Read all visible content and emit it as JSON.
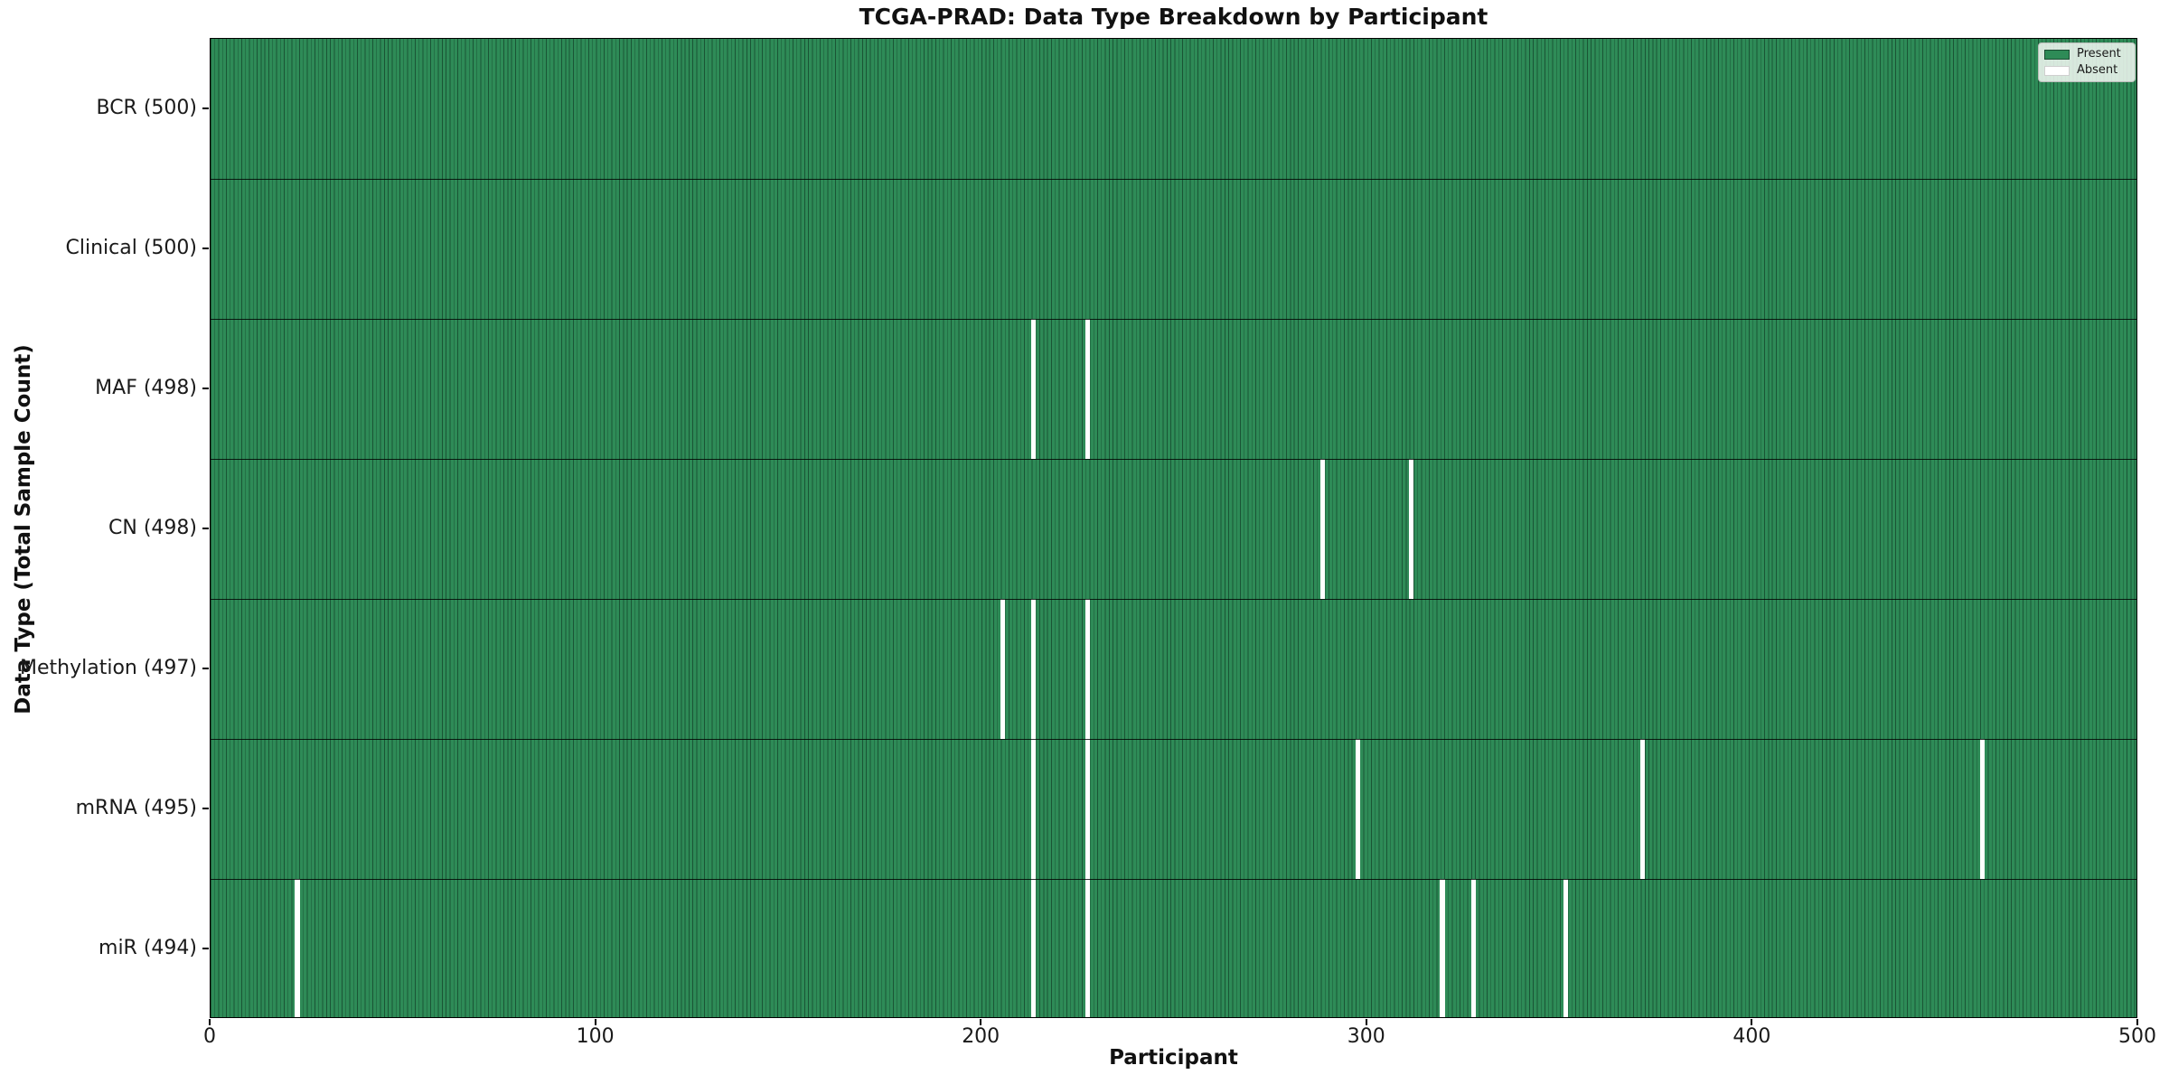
{
  "figure": {
    "title": "TCGA-PRAD: Data Type Breakdown by Participant",
    "xlabel": "Participant",
    "ylabel": "Data Type (Total Sample Count)"
  },
  "legend": {
    "items": [
      {
        "label": "Present",
        "color": "#2e8b57",
        "edge": "#1c4c33"
      },
      {
        "label": "Absent",
        "color": "#ffffff",
        "edge": "#cfcfcf"
      }
    ]
  },
  "chart_data": {
    "type": "heatmap",
    "title": "TCGA-PRAD: Data Type Breakdown by Participant",
    "xlabel": "Participant",
    "ylabel": "Data Type (Total Sample Count)",
    "x_axis": {
      "min": 0,
      "max": 500,
      "ticks": [
        0,
        100,
        200,
        300,
        400,
        500
      ]
    },
    "n_participants": 500,
    "colors": {
      "present": "#2e8b57",
      "absent": "#ffffff",
      "bar_edge": "rgba(10,40,25,0.55)",
      "row_separator": "rgba(0,0,0,0.8)"
    },
    "legend_position": "upper right",
    "grid": false,
    "rows": [
      {
        "label": "BCR (500)",
        "name": "BCR",
        "total": 500,
        "absent": []
      },
      {
        "label": "Clinical (500)",
        "name": "Clinical",
        "total": 500,
        "absent": []
      },
      {
        "label": "MAF (498)",
        "name": "MAF",
        "total": 498,
        "absent": [
          213,
          227
        ]
      },
      {
        "label": "CN (498)",
        "name": "CN",
        "total": 498,
        "absent": [
          288,
          311
        ]
      },
      {
        "label": "Methylation (497)",
        "name": "Methylation",
        "total": 497,
        "absent": [
          205,
          213,
          227
        ]
      },
      {
        "label": "mRNA (495)",
        "name": "mRNA",
        "total": 495,
        "absent": [
          213,
          227,
          297,
          371,
          459
        ]
      },
      {
        "label": "miR (494)",
        "name": "miR",
        "total": 494,
        "absent": [
          22,
          213,
          227,
          319,
          327,
          351
        ]
      }
    ]
  }
}
